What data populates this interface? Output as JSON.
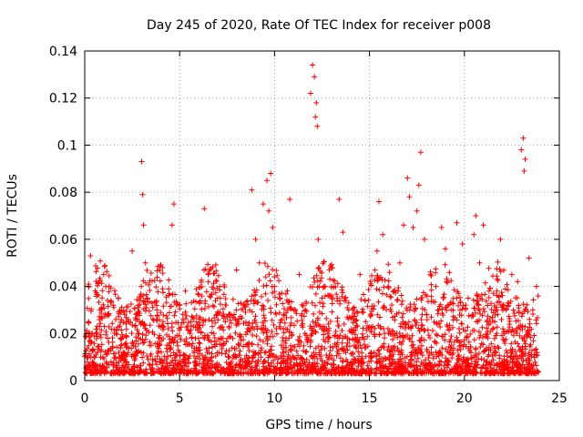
{
  "chart_data": {
    "type": "scatter",
    "title": "Day 245 of 2020, Rate Of TEC Index for receiver p008",
    "xlabel": "GPS time / hours",
    "ylabel": "ROTI / TECUs",
    "xlim": [
      0,
      25
    ],
    "ylim": [
      0,
      0.14
    ],
    "xticks": [
      0,
      5,
      10,
      15,
      20,
      25
    ],
    "xtick_labels": [
      "0",
      "5",
      "10",
      "15",
      "20",
      "25"
    ],
    "yticks": [
      0,
      0.02,
      0.04,
      0.06,
      0.08,
      0.1,
      0.12,
      0.14
    ],
    "ytick_labels": [
      "0",
      "0.02",
      "0.04",
      "0.06",
      "0.08",
      "0.1",
      "0.12",
      "0.14"
    ],
    "grid": true,
    "marker": "plus",
    "color": "#ff0000",
    "series": [
      {
        "name": "ROTI",
        "x": [
          0.2,
          0.3,
          0.4,
          0.8,
          1.0,
          1.2,
          1.5,
          1.8,
          2.1,
          2.5,
          2.8,
          3.0,
          3.05,
          3.1,
          3.2,
          3.3,
          3.5,
          3.8,
          4.1,
          4.4,
          4.6,
          4.7,
          5.0,
          5.3,
          5.6,
          6.0,
          6.3,
          6.5,
          6.8,
          7.0,
          7.3,
          7.6,
          8.0,
          8.4,
          8.8,
          9.0,
          9.2,
          9.4,
          9.6,
          9.7,
          9.8,
          9.9,
          10.0,
          10.1,
          10.3,
          10.6,
          10.8,
          11.0,
          11.3,
          11.6,
          11.9,
          12.0,
          12.1,
          12.15,
          12.2,
          12.25,
          12.3,
          12.5,
          12.8,
          13.1,
          13.4,
          13.6,
          13.9,
          14.2,
          14.5,
          14.8,
          15.1,
          15.4,
          15.5,
          15.7,
          16.0,
          16.3,
          16.6,
          16.8,
          17.0,
          17.1,
          17.3,
          17.5,
          17.6,
          17.7,
          17.9,
          18.2,
          18.5,
          18.8,
          19.0,
          19.3,
          19.6,
          19.9,
          20.2,
          20.5,
          20.6,
          20.8,
          21.0,
          21.3,
          21.6,
          21.9,
          22.2,
          22.5,
          22.8,
          23.0,
          23.1,
          23.15,
          23.2,
          23.4,
          23.6,
          23.8
        ],
        "y": [
          0.025,
          0.053,
          0.02,
          0.03,
          0.045,
          0.018,
          0.032,
          0.012,
          0.028,
          0.055,
          0.02,
          0.093,
          0.079,
          0.066,
          0.05,
          0.035,
          0.015,
          0.03,
          0.048,
          0.022,
          0.066,
          0.075,
          0.012,
          0.038,
          0.025,
          0.018,
          0.073,
          0.045,
          0.02,
          0.035,
          0.015,
          0.028,
          0.047,
          0.032,
          0.081,
          0.06,
          0.05,
          0.075,
          0.085,
          0.072,
          0.088,
          0.065,
          0.04,
          0.022,
          0.035,
          0.018,
          0.077,
          0.03,
          0.045,
          0.02,
          0.122,
          0.134,
          0.129,
          0.112,
          0.118,
          0.108,
          0.06,
          0.035,
          0.02,
          0.04,
          0.077,
          0.063,
          0.03,
          0.015,
          0.045,
          0.025,
          0.012,
          0.055,
          0.076,
          0.062,
          0.02,
          0.038,
          0.05,
          0.066,
          0.086,
          0.078,
          0.065,
          0.072,
          0.083,
          0.097,
          0.06,
          0.045,
          0.04,
          0.065,
          0.056,
          0.03,
          0.067,
          0.058,
          0.035,
          0.062,
          0.07,
          0.05,
          0.066,
          0.038,
          0.025,
          0.06,
          0.03,
          0.045,
          0.042,
          0.098,
          0.103,
          0.089,
          0.094,
          0.052,
          0.03,
          0.04
        ]
      }
    ]
  }
}
